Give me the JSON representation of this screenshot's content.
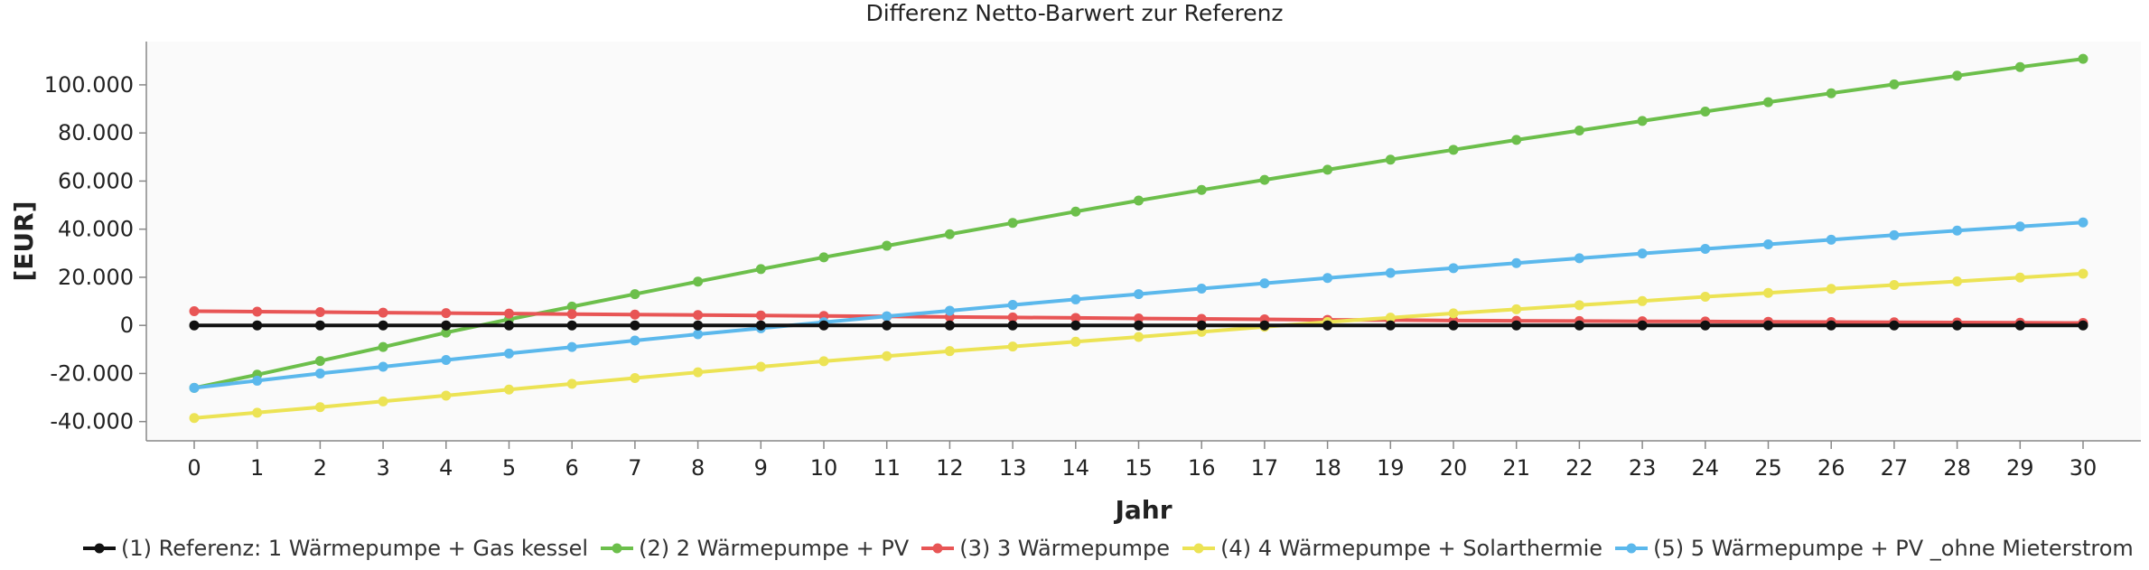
{
  "chart_data": {
    "type": "line",
    "title": "Differenz Netto-Barwert zur Referenz",
    "xlabel": "Jahr",
    "ylabel": "[EUR]",
    "xlim": [
      0,
      30
    ],
    "ylim": [
      -48000,
      118000
    ],
    "x": [
      0,
      1,
      2,
      3,
      4,
      5,
      6,
      7,
      8,
      9,
      10,
      11,
      12,
      13,
      14,
      15,
      16,
      17,
      18,
      19,
      20,
      21,
      22,
      23,
      24,
      25,
      26,
      27,
      28,
      29,
      30
    ],
    "y_ticks": [
      -40000,
      -20000,
      0,
      20000,
      40000,
      60000,
      80000,
      100000
    ],
    "y_tick_labels": [
      "-40.000",
      "-20.000",
      "0",
      "20.000",
      "40.000",
      "60.000",
      "80.000",
      "100.000"
    ],
    "x_tick_labels": [
      "0",
      "1",
      "2",
      "3",
      "4",
      "5",
      "6",
      "7",
      "8",
      "9",
      "10",
      "11",
      "12",
      "13",
      "14",
      "15",
      "16",
      "17",
      "18",
      "19",
      "20",
      "21",
      "22",
      "23",
      "24",
      "25",
      "26",
      "27",
      "28",
      "29",
      "30"
    ],
    "grid": false,
    "legend_position": "bottom",
    "series": [
      {
        "name": "(1) Referenz: 1 Wärmepumpe + Gas kessel",
        "color": "#111111",
        "values": [
          0,
          0,
          0,
          0,
          0,
          0,
          0,
          0,
          0,
          0,
          0,
          0,
          0,
          0,
          0,
          0,
          0,
          0,
          0,
          0,
          0,
          0,
          0,
          0,
          0,
          0,
          0,
          0,
          0,
          0,
          0
        ]
      },
      {
        "name": "(2) 2 Wärmepumpe + PV",
        "color": "#6cbf4b",
        "values": [
          -26000,
          -20500,
          -14800,
          -9000,
          -3000,
          2500,
          7800,
          13000,
          18200,
          23400,
          28300,
          33100,
          37900,
          42600,
          47300,
          51900,
          56300,
          60500,
          64700,
          68900,
          73000,
          77100,
          81000,
          85000,
          88900,
          92800,
          96500,
          100200,
          103800,
          107400,
          110800
        ]
      },
      {
        "name": "(3) 3 Wärmepumpe",
        "color": "#e85555",
        "values": [
          5900,
          5700,
          5500,
          5300,
          5100,
          4900,
          4700,
          4500,
          4300,
          4100,
          3900,
          3700,
          3500,
          3300,
          3100,
          2900,
          2700,
          2500,
          2300,
          2200,
          2000,
          1900,
          1800,
          1700,
          1600,
          1500,
          1400,
          1300,
          1200,
          1100,
          1000
        ]
      },
      {
        "name": "(4) 4 Wärmepumpe + Solarthermie",
        "color": "#ece354",
        "values": [
          -38500,
          -36300,
          -34000,
          -31600,
          -29200,
          -26700,
          -24300,
          -21900,
          -19500,
          -17200,
          -14900,
          -12800,
          -10700,
          -8800,
          -6800,
          -4800,
          -2700,
          -600,
          1400,
          3200,
          5000,
          6700,
          8400,
          10100,
          11900,
          13500,
          15200,
          16800,
          18300,
          19900,
          21500
        ]
      },
      {
        "name": "(5) 5 Wärmepumpe + PV _ohne Mieterstrom",
        "color": "#5bb8ec",
        "values": [
          -26000,
          -23000,
          -20000,
          -17200,
          -14400,
          -11700,
          -9000,
          -6300,
          -3700,
          -1200,
          1300,
          3800,
          6100,
          8500,
          10800,
          13000,
          15300,
          17500,
          19700,
          21800,
          23800,
          25900,
          27900,
          29900,
          31800,
          33700,
          35600,
          37500,
          39400,
          41100,
          42800
        ]
      }
    ]
  }
}
